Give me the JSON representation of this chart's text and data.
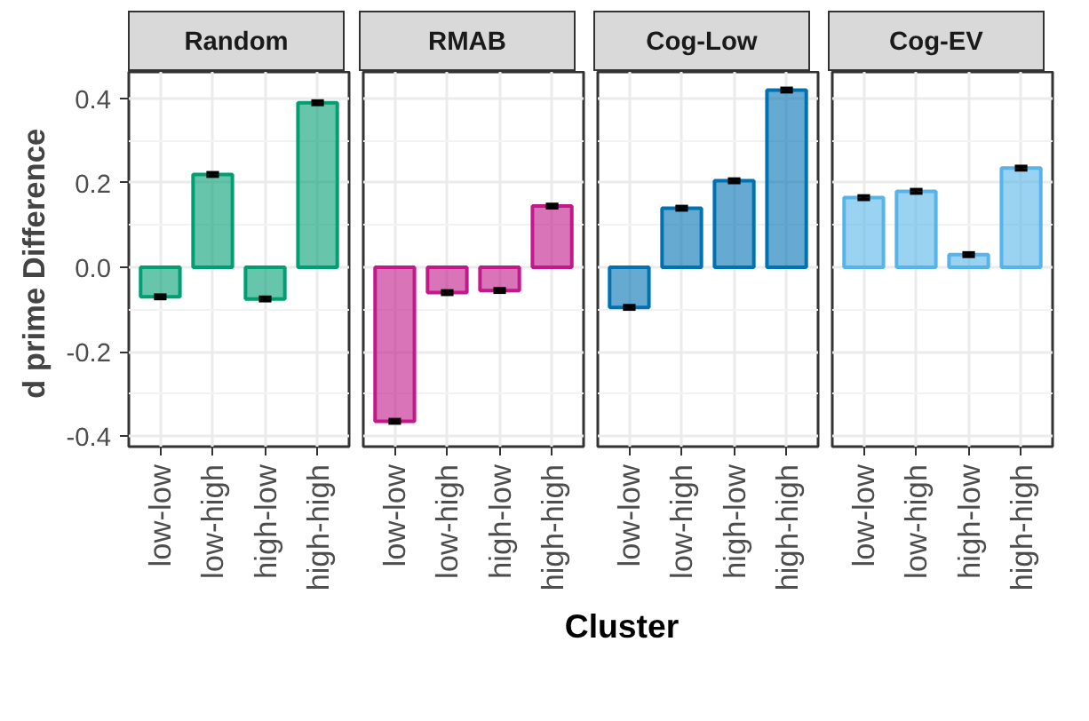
{
  "chart_data": [
    {
      "type": "bar",
      "title": "Random",
      "ylabel": "d prime  Difference",
      "categories": [
        "low-low",
        "low-high",
        "high-low",
        "high-high"
      ],
      "values": [
        -0.07,
        0.22,
        -0.075,
        0.39
      ],
      "errors": [
        0.004,
        0.004,
        0.004,
        0.004
      ],
      "color": "#009e73",
      "ylim": [
        -0.425,
        0.463
      ],
      "yticks": [
        {
          "value": -0.4,
          "label": "-0.4"
        },
        {
          "value": -0.2,
          "label": "-0.2"
        },
        {
          "value": 0,
          "label": "0.0"
        },
        {
          "value": 0.2,
          "label": "0.2"
        },
        {
          "value": 0.4,
          "label": "0.4"
        }
      ],
      "grid": true
    },
    {
      "type": "bar",
      "title": "RMAB",
      "categories": [
        "low-low",
        "low-high",
        "high-low",
        "high-high"
      ],
      "values": [
        -0.365,
        -0.06,
        -0.055,
        0.145
      ],
      "errors": [
        0.004,
        0.004,
        0.004,
        0.004
      ],
      "color": "#c2188a",
      "ylim": [
        -0.425,
        0.463
      ],
      "yticks": [
        -0.4,
        -0.2,
        0.0,
        0.2,
        0.4
      ],
      "tick_labels": "x",
      "grid": true
    },
    {
      "type": "bar",
      "title": "Cog-Low",
      "categories": [
        "low-low",
        "low-high",
        "high-low",
        "high-high"
      ],
      "values": [
        -0.095,
        0.14,
        0.205,
        0.42
      ],
      "errors": [
        0.004,
        0.004,
        0.004,
        0.004
      ],
      "color": "#0072b2",
      "ylim": [
        -0.425,
        0.463
      ],
      "yticks": [
        -0.4,
        -0.2,
        0.0,
        0.2,
        0.4
      ],
      "tick_labels": "x",
      "grid": true
    },
    {
      "type": "bar",
      "title": "Cog-EV",
      "xlabel": "Cluster",
      "categories": [
        "low-low",
        "low-high",
        "high-low",
        "high-high"
      ],
      "values": [
        0.165,
        0.18,
        0.03,
        0.235
      ],
      "errors": [
        0.004,
        0.004,
        0.004,
        0.004
      ],
      "color": "#56b4e9",
      "ylim": [
        -0.425,
        0.463
      ],
      "yticks": [
        -0.4,
        -0.2,
        0.0,
        0.2,
        0.4
      ],
      "tick_labels": "x",
      "grid": true
    }
  ]
}
